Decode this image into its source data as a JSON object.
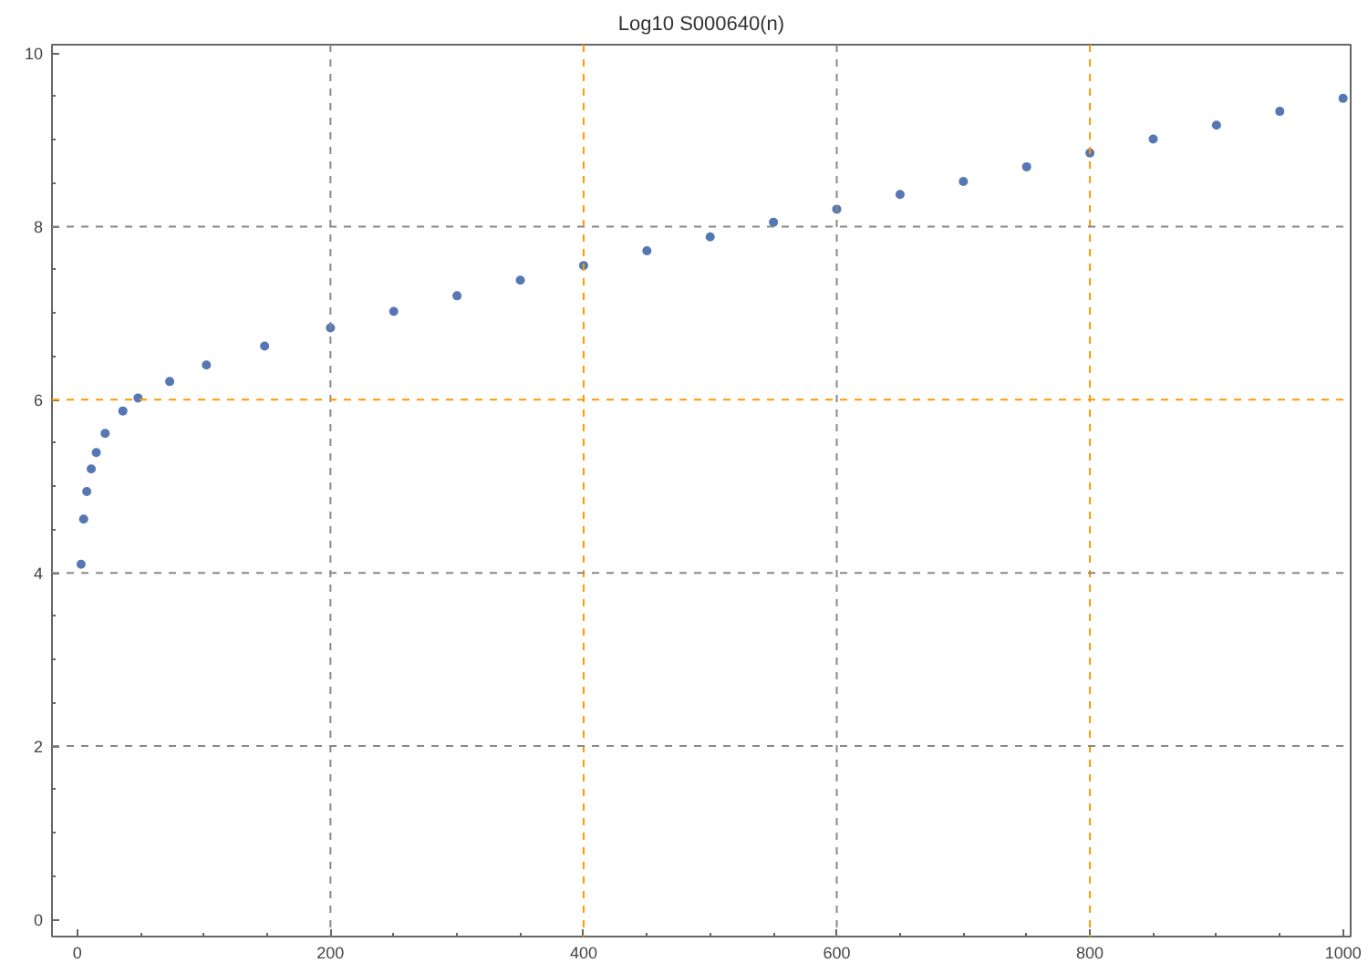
{
  "chart_data": {
    "type": "scatter",
    "title": "Log10 S000640(n)",
    "x": [
      3,
      5,
      7.5,
      11,
      15,
      22,
      36,
      48,
      73,
      102,
      148,
      200,
      250,
      300,
      350,
      400,
      450,
      500,
      550,
      600,
      650,
      700,
      750,
      800,
      850,
      900,
      950,
      1000
    ],
    "series": [
      {
        "color": "#5577b3",
        "values": [
          4.1,
          4.62,
          4.94,
          5.2,
          5.39,
          5.61,
          5.87,
          6.02,
          6.21,
          6.4,
          6.62,
          6.83,
          7.02,
          7.2,
          7.38,
          7.55,
          7.72,
          7.88,
          8.05,
          8.2,
          8.37,
          8.52,
          8.69,
          8.85,
          9.01,
          9.17,
          9.33,
          9.48
        ]
      }
    ],
    "marker": "circle",
    "grid": false,
    "xlim": [
      -20,
      1006
    ],
    "ylim": [
      -0.2,
      10.1
    ],
    "xticks": [
      0,
      {
        "value": 50,
        "label": null
      },
      {
        "value": 100,
        "label": null
      },
      {
        "value": 150,
        "label": null
      },
      200,
      {
        "value": 250,
        "label": null
      },
      {
        "value": 300,
        "label": null
      },
      {
        "value": 350,
        "label": null
      },
      400,
      {
        "value": 450,
        "label": null
      },
      {
        "value": 500,
        "label": null
      },
      {
        "value": 550,
        "label": null
      },
      600,
      {
        "value": 650,
        "label": null
      },
      {
        "value": 700,
        "label": null
      },
      {
        "value": 750,
        "label": null
      },
      800,
      {
        "value": 850,
        "label": null
      },
      {
        "value": 900,
        "label": null
      },
      {
        "value": 950,
        "label": null
      },
      1000
    ],
    "yticks": [
      0,
      {
        "value": 0.5,
        "label": null
      },
      {
        "value": 1,
        "label": null
      },
      {
        "value": 1.5,
        "label": null
      },
      2,
      {
        "value": 2.5,
        "label": null
      },
      {
        "value": 3,
        "label": null
      },
      {
        "value": 3.5,
        "label": null
      },
      4,
      {
        "value": 4.5,
        "label": null
      },
      {
        "value": 5,
        "label": null
      },
      {
        "value": 5.5,
        "label": null
      },
      6,
      {
        "value": 6.5,
        "label": null
      },
      {
        "value": 7,
        "label": null
      },
      {
        "value": 7.5,
        "label": null
      },
      8,
      {
        "value": 8.5,
        "label": null
      },
      {
        "value": 9,
        "label": null
      },
      {
        "value": 9.5,
        "label": null
      },
      10
    ],
    "ref_lines": [
      {
        "axis": "x",
        "value": 200,
        "color": "#888888",
        "line_style": "dashed"
      },
      {
        "axis": "x",
        "value": 400,
        "color": "#ff9900",
        "line_style": "dashed"
      },
      {
        "axis": "x",
        "value": 600,
        "color": "#888888",
        "line_style": "dashed"
      },
      {
        "axis": "x",
        "value": 800,
        "color": "#ff9900",
        "line_style": "dashed"
      },
      {
        "axis": "y",
        "value": 2,
        "color": "#888888",
        "line_style": "dashed"
      },
      {
        "axis": "y",
        "value": 4,
        "color": "#888888",
        "line_style": "dashed"
      },
      {
        "axis": "y",
        "value": 6,
        "color": "#ff9900",
        "line_style": "dashed"
      },
      {
        "axis": "y",
        "value": 8,
        "color": "#888888",
        "line_style": "dashed"
      }
    ]
  }
}
